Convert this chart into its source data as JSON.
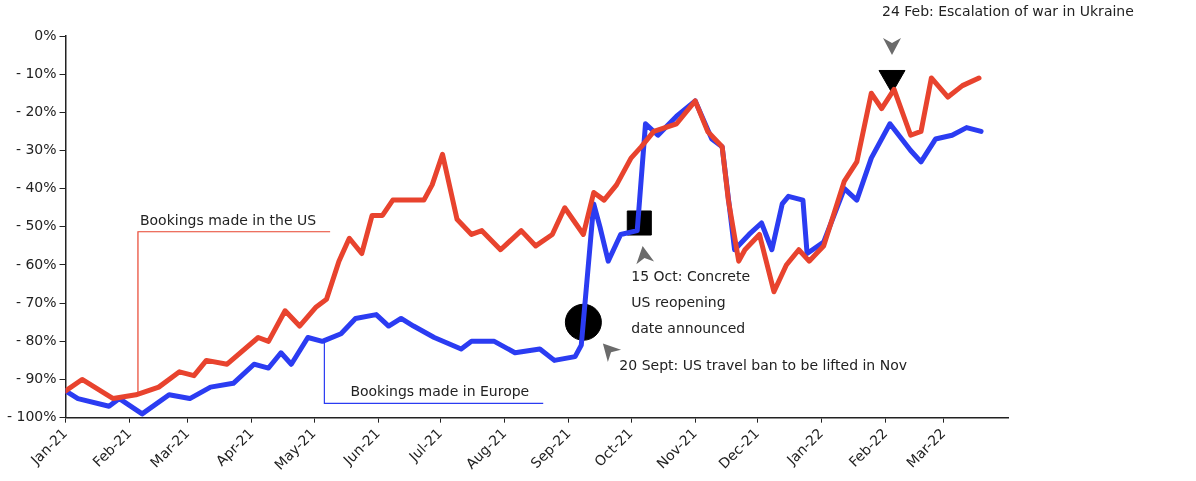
{
  "chart_data": {
    "type": "line",
    "xlim": [
      "2021-01-01",
      "2022-04-01"
    ],
    "xticks": [
      {
        "value": "2021-01-01",
        "label": "Jan-21"
      },
      {
        "value": "2021-02-01",
        "label": "Feb-21"
      },
      {
        "value": "2021-03-01",
        "label": "Mar-21"
      },
      {
        "value": "2021-04-01",
        "label": "Apr-21"
      },
      {
        "value": "2021-05-01",
        "label": "May-21"
      },
      {
        "value": "2021-06-01",
        "label": "Jun-21"
      },
      {
        "value": "2021-07-01",
        "label": "Jul-21"
      },
      {
        "value": "2021-08-01",
        "label": "Aug-21"
      },
      {
        "value": "2021-09-01",
        "label": "Sep-21"
      },
      {
        "value": "2021-10-01",
        "label": "Oct-21"
      },
      {
        "value": "2021-11-01",
        "label": "Nov-21"
      },
      {
        "value": "2021-12-01",
        "label": "Dec-21"
      },
      {
        "value": "2022-01-01",
        "label": "Jan-22"
      },
      {
        "value": "2022-02-01",
        "label": "Feb-22"
      },
      {
        "value": "2022-03-01",
        "label": "Mar-22"
      }
    ],
    "ylim": [
      -100,
      0
    ],
    "yticks": [
      {
        "value": -100,
        "label": "- 100%"
      },
      {
        "value": -90,
        "label": "- 90%"
      },
      {
        "value": -80,
        "label": "- 80%"
      },
      {
        "value": -70,
        "label": "- 70%"
      },
      {
        "value": -60,
        "label": "- 60%"
      },
      {
        "value": -50,
        "label": "- 50%"
      },
      {
        "value": -40,
        "label": "- 40%"
      },
      {
        "value": -30,
        "label": "- 30%"
      },
      {
        "value": -20,
        "label": "- 20%"
      },
      {
        "value": -10,
        "label": "- 10%"
      },
      {
        "value": 0,
        "label": "0%"
      }
    ],
    "grid": false,
    "legend": false,
    "series": [
      {
        "name": "Bookings made in the US",
        "color": "#e8432e",
        "x": [
          "2021-01-01",
          "2021-01-09",
          "2021-01-24",
          "2021-02-04",
          "2021-02-15",
          "2021-02-25",
          "2021-03-04",
          "2021-03-10",
          "2021-03-20",
          "2021-04-04",
          "2021-04-09",
          "2021-04-17",
          "2021-04-24",
          "2021-05-02",
          "2021-05-07",
          "2021-05-13",
          "2021-05-18",
          "2021-05-24",
          "2021-05-29",
          "2021-06-03",
          "2021-06-08",
          "2021-06-23",
          "2021-06-27",
          "2021-07-02",
          "2021-07-09",
          "2021-07-16",
          "2021-07-21",
          "2021-07-30",
          "2021-08-09",
          "2021-08-16",
          "2021-08-24",
          "2021-08-30",
          "2021-09-08",
          "2021-09-13",
          "2021-09-18",
          "2021-09-24",
          "2021-10-01",
          "2021-10-06",
          "2021-10-12",
          "2021-10-23",
          "2021-11-01",
          "2021-11-07",
          "2021-11-14",
          "2021-11-17",
          "2021-11-22",
          "2021-11-25",
          "2021-12-02",
          "2021-12-09",
          "2021-12-15",
          "2021-12-21",
          "2021-12-26",
          "2022-01-02",
          "2022-01-12",
          "2022-01-18",
          "2022-01-25",
          "2022-01-30",
          "2022-02-05",
          "2022-02-13",
          "2022-02-18",
          "2022-02-23",
          "2022-03-03",
          "2022-03-10",
          "2022-03-18"
        ],
        "values": [
          -93,
          -90,
          -95,
          -94,
          -92,
          -88,
          -89,
          -85,
          -86,
          -79,
          -80,
          -72,
          -76,
          -71,
          -69,
          -59,
          -53,
          -57,
          -47,
          -47,
          -43,
          -43,
          -39,
          -31,
          -48,
          -52,
          -51,
          -56,
          -51,
          -55,
          -52,
          -45,
          -52,
          -41,
          -43,
          -39,
          -32,
          -29,
          -25,
          -23,
          -17,
          -25,
          -29,
          -43,
          -59,
          -56,
          -52,
          -67,
          -60,
          -56,
          -59,
          -55,
          -38,
          -33,
          -15,
          -19,
          -14,
          -26,
          -25,
          -11,
          -16,
          -13,
          -11
        ]
      },
      {
        "name": "Bookings made in Europe",
        "color": "#2b3cf2",
        "x": [
          "2021-01-01",
          "2021-01-07",
          "2021-01-22",
          "2021-01-27",
          "2021-02-07",
          "2021-02-20",
          "2021-03-02",
          "2021-03-12",
          "2021-03-23",
          "2021-04-02",
          "2021-04-09",
          "2021-04-15",
          "2021-04-20",
          "2021-04-28",
          "2021-05-05",
          "2021-05-14",
          "2021-05-21",
          "2021-05-31",
          "2021-06-06",
          "2021-06-12",
          "2021-06-18",
          "2021-06-28",
          "2021-07-11",
          "2021-07-16",
          "2021-07-27",
          "2021-08-06",
          "2021-08-18",
          "2021-08-25",
          "2021-09-04",
          "2021-09-07",
          "2021-09-13",
          "2021-09-16",
          "2021-09-20",
          "2021-09-26",
          "2021-10-04",
          "2021-10-08",
          "2021-10-14",
          "2021-10-23",
          "2021-11-01",
          "2021-11-09",
          "2021-11-14",
          "2021-11-20",
          "2021-11-27",
          "2021-12-03",
          "2021-12-08",
          "2021-12-13",
          "2021-12-16",
          "2021-12-23",
          "2021-12-25",
          "2022-01-02",
          "2022-01-12",
          "2022-01-18",
          "2022-01-25",
          "2022-02-03",
          "2022-02-13",
          "2022-02-18",
          "2022-02-25",
          "2022-03-05",
          "2022-03-12",
          "2022-03-19"
        ],
        "values": [
          -93,
          -95,
          -97,
          -95,
          -99,
          -94,
          -95,
          -92,
          -91,
          -86,
          -87,
          -83,
          -86,
          -79,
          -80,
          -78,
          -74,
          -73,
          -76,
          -74,
          -76,
          -79,
          -82,
          -80,
          -80,
          -83,
          -82,
          -85,
          -84,
          -81,
          -44,
          -50,
          -59,
          -52,
          -51,
          -23,
          -26,
          -21,
          -17,
          -27,
          -29,
          -56,
          -52,
          -49,
          -56,
          -44,
          -42,
          -43,
          -57,
          -54,
          -40,
          -43,
          -32,
          -23,
          -30,
          -33,
          -27,
          -26,
          -24,
          -25
        ]
      },
      {
        "type": "scatter",
        "marker": "circle",
        "color": "#000000",
        "x": [
          "2021-09-08"
        ],
        "values": [
          -75
        ]
      },
      {
        "type": "scatter",
        "marker": "square",
        "color": "#000000",
        "x": [
          "2021-10-05"
        ],
        "values": [
          -49
        ]
      },
      {
        "type": "scatter",
        "marker": "triangle",
        "color": "#000000",
        "x": [
          "2022-02-04"
        ],
        "values": [
          -11
        ]
      }
    ],
    "annotations": [
      "20 Sept: US travel ban to be lifted in Nov",
      "15 Oct: Concrete US reopening date announced",
      "24 Feb: Escalation of war in Ukraine"
    ]
  }
}
